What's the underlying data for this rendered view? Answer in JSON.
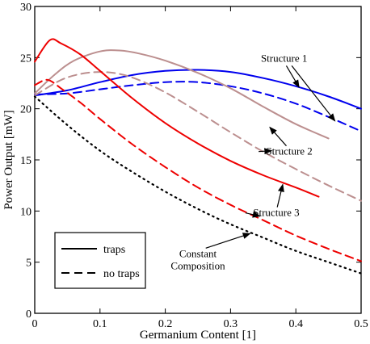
{
  "chart_data": {
    "type": "line",
    "title": "",
    "xlabel": "Germanium Content [1]",
    "ylabel": "Power Output [mW]",
    "xlim": [
      0,
      0.5
    ],
    "ylim": [
      0,
      30
    ],
    "xticks": [
      0,
      0.1,
      0.2,
      0.3,
      0.4,
      0.5
    ],
    "yticks": [
      0,
      5,
      10,
      15,
      20,
      25,
      30
    ],
    "xtick_labels": [
      "0",
      "0.1",
      "0.2",
      "0.3",
      "0.4",
      "0.5"
    ],
    "ytick_labels": [
      "0",
      "5",
      "10",
      "15",
      "20",
      "25",
      "30"
    ],
    "grid": false,
    "legend": {
      "placement": "bottom-left",
      "entries": [
        {
          "label": "traps",
          "style": "solid"
        },
        {
          "label": "no traps",
          "style": "dashed"
        }
      ]
    },
    "annotations": [
      {
        "text": "Structure 1",
        "x": 0.382,
        "y": 24.6,
        "arrows_to": [
          [
            0.405,
            22.1
          ],
          [
            0.46,
            18.8
          ]
        ]
      },
      {
        "text": "Structure 2",
        "x": 0.39,
        "y": 15.5,
        "arrows_to": [
          [
            0.36,
            18.2
          ],
          [
            0.363,
            15.9
          ]
        ]
      },
      {
        "text": "Structure 3",
        "x": 0.37,
        "y": 9.5,
        "arrows_to": [
          [
            0.38,
            12.6
          ],
          [
            0.345,
            9.5
          ]
        ]
      },
      {
        "text": "Constant\nComposition",
        "x": 0.25,
        "y": 5.5,
        "arrows_to": [
          [
            0.33,
            7.8
          ]
        ]
      }
    ],
    "series": [
      {
        "group": "Structure 1",
        "style": "solid",
        "color": "#0000ee",
        "x": [
          0,
          0.05,
          0.1,
          0.15,
          0.2,
          0.25,
          0.3,
          0.35,
          0.4,
          0.45,
          0.5
        ],
        "y": [
          21.3,
          21.8,
          22.6,
          23.3,
          23.7,
          23.8,
          23.6,
          23.0,
          22.2,
          21.2,
          20.0
        ]
      },
      {
        "group": "Structure 1",
        "style": "dashed",
        "color": "#0000ee",
        "x": [
          0,
          0.05,
          0.1,
          0.15,
          0.2,
          0.25,
          0.3,
          0.35,
          0.4,
          0.45,
          0.5
        ],
        "y": [
          21.4,
          21.5,
          21.9,
          22.3,
          22.6,
          22.6,
          22.2,
          21.5,
          20.5,
          19.2,
          17.8
        ]
      },
      {
        "group": "Structure 2",
        "style": "solid",
        "color": "#bc8f8f",
        "x": [
          0,
          0.03,
          0.06,
          0.1,
          0.13,
          0.16,
          0.2,
          0.25,
          0.3,
          0.35,
          0.4,
          0.45
        ],
        "y": [
          21.5,
          23.3,
          24.7,
          25.6,
          25.7,
          25.4,
          24.7,
          23.5,
          22.0,
          20.2,
          18.5,
          17.1
        ]
      },
      {
        "group": "Structure 2",
        "style": "dashed",
        "color": "#bc8f8f",
        "x": [
          0,
          0.04,
          0.07,
          0.1,
          0.13,
          0.16,
          0.2,
          0.25,
          0.3,
          0.35,
          0.4,
          0.45,
          0.5
        ],
        "y": [
          21.3,
          22.8,
          23.4,
          23.6,
          23.4,
          22.8,
          21.6,
          19.7,
          17.7,
          15.8,
          14.1,
          12.5,
          11.0
        ]
      },
      {
        "group": "Structure 3",
        "style": "solid",
        "color": "#ee0000",
        "x": [
          0,
          0.023,
          0.04,
          0.07,
          0.1,
          0.15,
          0.2,
          0.25,
          0.3,
          0.35,
          0.4,
          0.435
        ],
        "y": [
          24.6,
          26.7,
          26.4,
          25.3,
          23.7,
          21.0,
          18.6,
          16.6,
          14.9,
          13.5,
          12.3,
          11.4
        ]
      },
      {
        "group": "Structure 3",
        "style": "dashed",
        "color": "#ee0000",
        "x": [
          0,
          0.015,
          0.025,
          0.04,
          0.07,
          0.1,
          0.15,
          0.2,
          0.25,
          0.3,
          0.35,
          0.4,
          0.45,
          0.5
        ],
        "y": [
          22.3,
          22.8,
          22.7,
          22.0,
          20.6,
          19.0,
          16.5,
          14.3,
          12.3,
          10.6,
          9.1,
          7.6,
          6.3,
          5.1
        ]
      },
      {
        "group": "Constant Composition",
        "style": "dotted",
        "color": "#000000",
        "x": [
          0,
          0.05,
          0.1,
          0.15,
          0.2,
          0.25,
          0.3,
          0.35,
          0.4,
          0.45,
          0.5
        ],
        "y": [
          21.2,
          18.4,
          15.9,
          13.8,
          11.9,
          10.2,
          8.7,
          7.4,
          6.1,
          5.0,
          3.9
        ]
      }
    ]
  }
}
